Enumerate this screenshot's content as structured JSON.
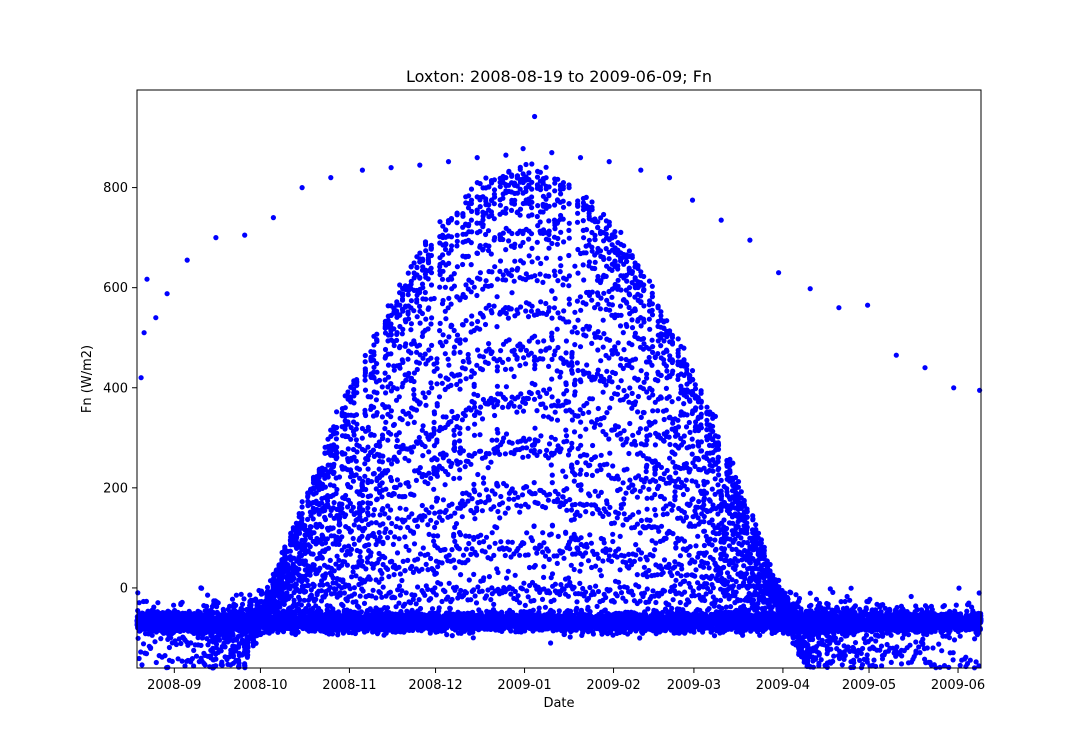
{
  "chart_data": {
    "type": "scatter",
    "title": "Loxton: 2008-08-19 to 2009-06-09; Fn",
    "xlabel": "Date",
    "ylabel": "Fn (W/m2)",
    "xlim": [
      "2008-08-19",
      "2009-06-09"
    ],
    "ylim": [
      -160,
      995
    ],
    "x_ticks": [
      "2008-09",
      "2008-10",
      "2008-11",
      "2008-12",
      "2009-01",
      "2009-02",
      "2009-03",
      "2009-04",
      "2009-05",
      "2009-06"
    ],
    "y_ticks": [
      0,
      200,
      400,
      600,
      800
    ],
    "grid": false,
    "legend": "none",
    "marker_color": "#0000ff",
    "series": [
      {
        "sampling": "half-hourly",
        "points": [
          [
            "2008-08-20 10:00",
            420
          ],
          [
            "2008-08-21 11:00",
            510
          ],
          [
            "2008-08-22 12:00",
            617
          ],
          [
            "2008-08-25 13:00",
            540
          ],
          [
            "2008-08-29 12:00",
            588
          ],
          [
            "2008-09-05 12:00",
            655
          ],
          [
            "2008-09-15 12:00",
            700
          ],
          [
            "2008-09-25 12:00",
            705
          ],
          [
            "2008-10-05 12:00",
            740
          ],
          [
            "2008-10-15 12:00",
            800
          ],
          [
            "2008-10-25 12:00",
            820
          ],
          [
            "2008-11-05 12:00",
            835
          ],
          [
            "2008-11-15 12:00",
            840
          ],
          [
            "2008-11-25 12:00",
            845
          ],
          [
            "2008-12-05 12:00",
            852
          ],
          [
            "2008-12-15 12:00",
            860
          ],
          [
            "2008-12-25 12:00",
            865
          ],
          [
            "2008-12-31 12:00",
            878
          ],
          [
            "2009-01-04 12:00",
            942
          ],
          [
            "2009-01-10 12:00",
            870
          ],
          [
            "2009-01-20 12:00",
            860
          ],
          [
            "2009-01-30 12:00",
            852
          ],
          [
            "2009-02-10 12:00",
            835
          ],
          [
            "2009-02-20 12:00",
            820
          ],
          [
            "2009-02-28 12:00",
            775
          ],
          [
            "2009-03-10 12:00",
            735
          ],
          [
            "2009-03-20 12:00",
            695
          ],
          [
            "2009-03-30 12:00",
            630
          ],
          [
            "2009-04-10 12:00",
            598
          ],
          [
            "2009-04-20 12:00",
            560
          ],
          [
            "2009-04-30 12:00",
            565
          ],
          [
            "2009-05-10 12:00",
            465
          ],
          [
            "2009-05-20 12:00",
            440
          ],
          [
            "2009-05-30 12:00",
            400
          ],
          [
            "2009-06-08 12:00",
            395
          ],
          [
            "2008-09-10 06:00",
            0
          ],
          [
            "2008-10-10 05:00",
            -10
          ],
          [
            "2008-11-10 05:00",
            -20
          ],
          [
            "2008-12-10 21:00",
            -80
          ],
          [
            "2009-01-10 02:00",
            -110
          ],
          [
            "2009-02-10 03:00",
            -100
          ],
          [
            "2009-03-10 01:00",
            -90
          ],
          [
            "2009-04-10 02:00",
            -95
          ],
          [
            "2009-05-10 03:00",
            -85
          ],
          [
            "2009-06-05 02:00",
            -75
          ]
        ],
        "approximate": true
      }
    ]
  }
}
